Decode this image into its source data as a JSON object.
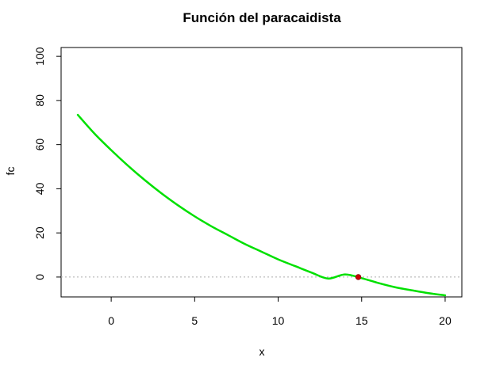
{
  "chart_data": {
    "type": "line",
    "title": "Función del paracaidista",
    "xlabel": "x",
    "ylabel": "fc",
    "xlim": [
      -3,
      21
    ],
    "ylim": [
      -9,
      104
    ],
    "x_ticks": [
      0,
      5,
      10,
      15,
      20
    ],
    "y_ticks": [
      0,
      20,
      40,
      60,
      80,
      100
    ],
    "x_tick_labels": [
      "0",
      "5",
      "10",
      "15",
      "20"
    ],
    "y_tick_labels": [
      "0",
      "20",
      "40",
      "60",
      "80",
      "100"
    ],
    "grid": false,
    "series": [
      {
        "color": "#00e000",
        "x": [
          -2,
          -1,
          0,
          1,
          2,
          3,
          4,
          5,
          6,
          7,
          8,
          9,
          10,
          11,
          12,
          13,
          14,
          15,
          16,
          17,
          18,
          19,
          20
        ],
        "y": [
          73.5,
          65,
          57.5,
          50.5,
          44,
          38,
          32.5,
          27.5,
          23,
          19,
          15,
          11.5,
          8,
          5,
          2,
          -0.7,
          1.2,
          -0.5,
          -2.7,
          -4.6,
          -6,
          -7.3,
          -8.3
        ]
      }
    ],
    "reference_line": {
      "y": 0,
      "color": "#aaaaaa",
      "style": "dotted"
    },
    "root_point": {
      "x": 14.8,
      "y": 0,
      "color": "#cc0000"
    }
  }
}
